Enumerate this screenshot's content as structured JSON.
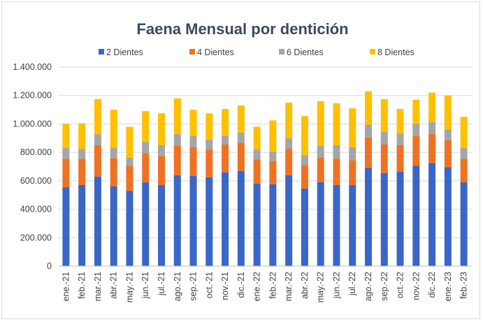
{
  "chart_data": {
    "type": "bar",
    "stacked": true,
    "title": "Faena Mensual por dentición",
    "xlabel": "",
    "ylabel": "",
    "ylim": [
      0,
      1400000
    ],
    "yticks": [
      "0",
      "200.000",
      "400.000",
      "600.000",
      "800.000",
      "1.000.000",
      "1.200.000",
      "1.400.000"
    ],
    "ytick_values": [
      0,
      200000,
      400000,
      600000,
      800000,
      1000000,
      1200000,
      1400000
    ],
    "grid": true,
    "legend_position": "top",
    "categories": [
      "ene.-21",
      "feb.-21",
      "mar.-21",
      "abr.-21",
      "may.-21",
      "jun.-21",
      "jul.-21",
      "ago.-21",
      "sep.-21",
      "oct.-21",
      "nov.-21",
      "dic.-21",
      "ene.-22",
      "feb.-22",
      "mar.-22",
      "abr.-22",
      "may.-22",
      "jun.-22",
      "jul.-22",
      "ago.-22",
      "sep.-22",
      "oct.-22",
      "nov.-22",
      "dic.-22",
      "ene.-23",
      "feb.-23"
    ],
    "series": [
      {
        "name": "2 Dientes",
        "color": "#3a66c8",
        "values": [
          555000,
          570000,
          630000,
          560000,
          530000,
          590000,
          570000,
          640000,
          635000,
          625000,
          660000,
          670000,
          580000,
          575000,
          640000,
          545000,
          590000,
          570000,
          570000,
          690000,
          655000,
          665000,
          705000,
          725000,
          695000,
          590000
        ]
      },
      {
        "name": "4 Dientes",
        "color": "#ee7222",
        "values": [
          200000,
          185000,
          220000,
          200000,
          175000,
          205000,
          205000,
          205000,
          200000,
          195000,
          195000,
          195000,
          170000,
          165000,
          185000,
          165000,
          175000,
          185000,
          175000,
          215000,
          200000,
          185000,
          210000,
          205000,
          190000,
          165000
        ]
      },
      {
        "name": "6 Dientes",
        "color": "#a5a5a5",
        "values": [
          75000,
          70000,
          80000,
          70000,
          60000,
          80000,
          75000,
          85000,
          80000,
          70000,
          60000,
          75000,
          70000,
          65000,
          75000,
          70000,
          80000,
          95000,
          90000,
          90000,
          90000,
          85000,
          85000,
          85000,
          75000,
          75000
        ]
      },
      {
        "name": "8 Dientes",
        "color": "#ffc000",
        "values": [
          170000,
          180000,
          245000,
          270000,
          215000,
          215000,
          225000,
          250000,
          185000,
          185000,
          190000,
          190000,
          160000,
          220000,
          250000,
          275000,
          315000,
          295000,
          275000,
          235000,
          230000,
          170000,
          170000,
          205000,
          240000,
          220000
        ]
      }
    ]
  }
}
